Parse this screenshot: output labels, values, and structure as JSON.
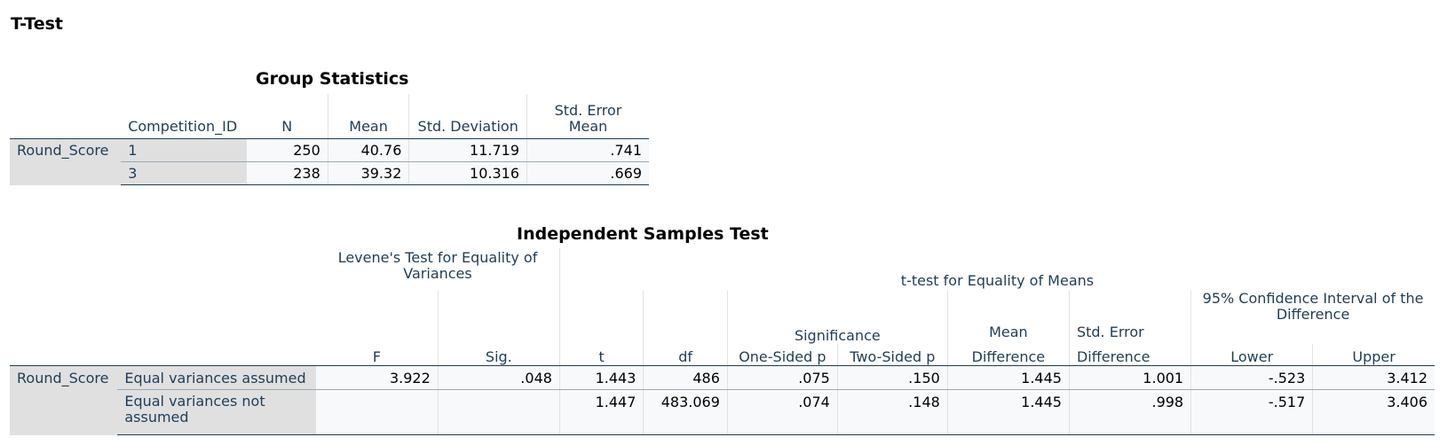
{
  "page_title": "T-Test",
  "group_statistics": {
    "title": "Group Statistics",
    "headers": {
      "group": "Competition_ID",
      "n": "N",
      "mean": "Mean",
      "std_dev": "Std. Deviation",
      "std_err_l1": "Std. Error",
      "std_err_l2": "Mean"
    },
    "row_label": "Round_Score",
    "rows": [
      {
        "group": "1",
        "n": "250",
        "mean": "40.76",
        "std_dev": "11.719",
        "std_err": ".741"
      },
      {
        "group": "3",
        "n": "238",
        "mean": "39.32",
        "std_dev": "10.316",
        "std_err": ".669"
      }
    ]
  },
  "independent_samples_test": {
    "title": "Independent Samples Test",
    "headers": {
      "levene_l1": "Levene's Test for Equality of",
      "levene_l2": "Variances",
      "ttest": "t-test for Equality of Means",
      "significance": "Significance",
      "mean_diff_l1": "Mean",
      "mean_diff_l2": "Difference",
      "se_diff_l1": "Std. Error",
      "se_diff_l2": "Difference",
      "ci_l1": "95% Confidence Interval of the",
      "ci_l2": "Difference",
      "f": "F",
      "sig": "Sig.",
      "t": "t",
      "df": "df",
      "one_sided": "One-Sided p",
      "two_sided": "Two-Sided p",
      "lower": "Lower",
      "upper": "Upper"
    },
    "row_label": "Round_Score",
    "rows": [
      {
        "label": "Equal variances assumed",
        "f": "3.922",
        "sig": ".048",
        "t": "1.443",
        "df": "486",
        "one_sided": ".075",
        "two_sided": ".150",
        "mean_diff": "1.445",
        "se_diff": "1.001",
        "lower": "-.523",
        "upper": "3.412"
      },
      {
        "label": "Equal variances not assumed",
        "f": "",
        "sig": "",
        "t": "1.447",
        "df": "483.069",
        "one_sided": ".074",
        "two_sided": ".148",
        "mean_diff": "1.445",
        "se_diff": ".998",
        "lower": "-.517",
        "upper": "3.406"
      }
    ]
  }
}
